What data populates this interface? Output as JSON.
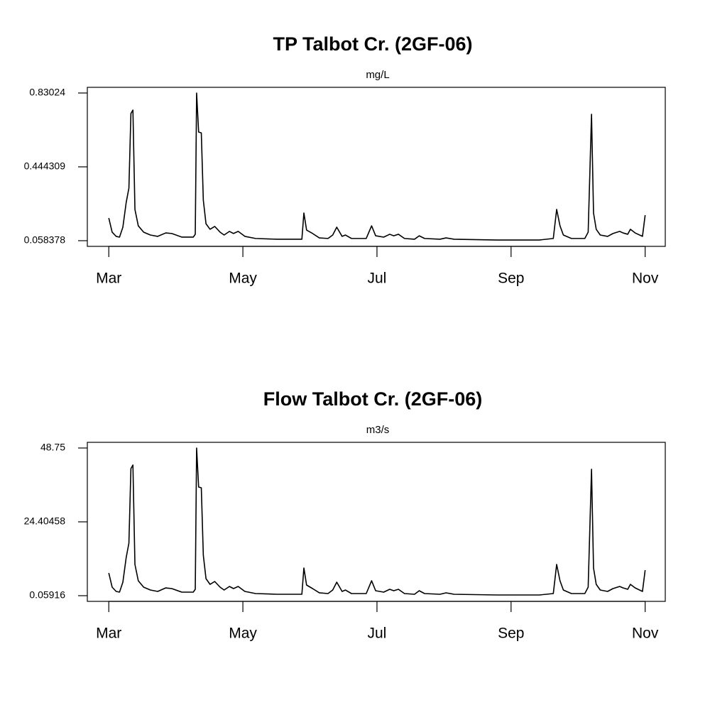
{
  "chart_data": [
    {
      "type": "line",
      "title": "TP Talbot Cr. (2GF-06)",
      "subtitle": "mg/L",
      "color": "#000000",
      "x": [
        3.0,
        3.05,
        3.11,
        3.16,
        3.21,
        3.26,
        3.3,
        3.33,
        3.36,
        3.39,
        3.44,
        3.52,
        3.62,
        3.73,
        3.85,
        3.94,
        4.09,
        4.26,
        4.29,
        4.31,
        4.34,
        4.38,
        4.41,
        4.45,
        4.51,
        4.58,
        4.66,
        4.72,
        4.8,
        4.86,
        4.93,
        5.03,
        5.19,
        5.51,
        5.88,
        5.91,
        5.95,
        6.04,
        6.14,
        6.27,
        6.34,
        6.4,
        6.48,
        6.53,
        6.62,
        6.84,
        6.92,
        6.98,
        7.1,
        7.19,
        7.25,
        7.32,
        7.41,
        7.56,
        7.63,
        7.71,
        7.94,
        8.03,
        8.15,
        8.79,
        9.42,
        9.63,
        9.68,
        9.73,
        9.78,
        9.9,
        10.1,
        10.15,
        10.2,
        10.23,
        10.27,
        10.33,
        10.44,
        10.52,
        10.62,
        10.67,
        10.74,
        10.78,
        10.85,
        10.96,
        11.0
      ],
      "values": [
        0.177,
        0.103,
        0.081,
        0.077,
        0.129,
        0.259,
        0.333,
        0.723,
        0.741,
        0.222,
        0.136,
        0.103,
        0.088,
        0.081,
        0.099,
        0.096,
        0.077,
        0.077,
        0.092,
        0.83,
        0.626,
        0.622,
        0.27,
        0.147,
        0.118,
        0.133,
        0.103,
        0.088,
        0.107,
        0.096,
        0.107,
        0.081,
        0.07,
        0.066,
        0.066,
        0.203,
        0.114,
        0.096,
        0.073,
        0.07,
        0.088,
        0.129,
        0.081,
        0.088,
        0.07,
        0.07,
        0.136,
        0.084,
        0.077,
        0.092,
        0.084,
        0.092,
        0.07,
        0.066,
        0.084,
        0.07,
        0.066,
        0.073,
        0.066,
        0.062,
        0.062,
        0.07,
        0.222,
        0.136,
        0.088,
        0.07,
        0.07,
        0.103,
        0.719,
        0.203,
        0.118,
        0.088,
        0.081,
        0.096,
        0.107,
        0.099,
        0.092,
        0.118,
        0.099,
        0.081,
        0.192
      ],
      "xlim": [
        2.68,
        11.3
      ],
      "xticks": [
        {
          "value": 3,
          "label": "Mar"
        },
        {
          "value": 5,
          "label": "May"
        },
        {
          "value": 7,
          "label": "Jul"
        },
        {
          "value": 9,
          "label": "Sep"
        },
        {
          "value": 11,
          "label": "Nov"
        }
      ],
      "ylim": [
        0.0287,
        0.8599
      ],
      "yticks": [
        0.058378,
        0.444309,
        0.83024
      ]
    },
    {
      "type": "line",
      "title": "Flow Talbot Cr. (2GF-06)",
      "subtitle": "m3/s",
      "color": "#000000",
      "x": [
        3.0,
        3.05,
        3.11,
        3.16,
        3.21,
        3.26,
        3.3,
        3.33,
        3.36,
        3.39,
        3.44,
        3.52,
        3.62,
        3.73,
        3.85,
        3.94,
        4.09,
        4.26,
        4.29,
        4.31,
        4.34,
        4.38,
        4.41,
        4.45,
        4.51,
        4.58,
        4.66,
        4.72,
        4.8,
        4.86,
        4.93,
        5.03,
        5.19,
        5.51,
        5.88,
        5.91,
        5.95,
        6.04,
        6.14,
        6.27,
        6.34,
        6.4,
        6.48,
        6.53,
        6.62,
        6.84,
        6.92,
        6.98,
        7.1,
        7.19,
        7.25,
        7.32,
        7.41,
        7.56,
        7.63,
        7.71,
        7.94,
        8.03,
        8.15,
        8.79,
        9.42,
        9.63,
        9.68,
        9.73,
        9.78,
        9.9,
        10.1,
        10.15,
        10.2,
        10.23,
        10.27,
        10.33,
        10.44,
        10.52,
        10.62,
        10.67,
        10.74,
        10.78,
        10.85,
        10.96,
        11.0
      ],
      "values": [
        7.55,
        2.87,
        1.46,
        1.23,
        4.51,
        12.7,
        17.38,
        41.96,
        43.13,
        10.36,
        4.98,
        2.87,
        1.93,
        1.46,
        2.63,
        2.4,
        1.23,
        1.23,
        2.17,
        48.75,
        35.88,
        35.64,
        13.4,
        5.68,
        3.8,
        4.74,
        2.87,
        1.93,
        3.1,
        2.4,
        3.1,
        1.46,
        0.76,
        0.53,
        0.53,
        9.19,
        3.57,
        2.4,
        1.0,
        0.76,
        1.93,
        4.51,
        1.46,
        1.93,
        0.76,
        0.76,
        4.98,
        1.7,
        1.23,
        2.17,
        1.7,
        2.17,
        0.76,
        0.53,
        1.7,
        0.76,
        0.53,
        1.0,
        0.53,
        0.29,
        0.29,
        0.76,
        10.36,
        4.98,
        1.93,
        0.76,
        0.76,
        2.87,
        41.73,
        9.19,
        3.8,
        1.93,
        1.46,
        2.4,
        3.1,
        2.63,
        2.17,
        3.8,
        2.63,
        1.46,
        8.49
      ],
      "xlim": [
        2.68,
        11.3
      ],
      "xticks": [
        {
          "value": 3,
          "label": "Mar"
        },
        {
          "value": 5,
          "label": "May"
        },
        {
          "value": 7,
          "label": "Jul"
        },
        {
          "value": 9,
          "label": "Sep"
        },
        {
          "value": 11,
          "label": "Nov"
        }
      ],
      "ylim": [
        -1.814,
        50.62
      ],
      "yticks": [
        0.05916,
        24.40458,
        48.75
      ]
    }
  ]
}
